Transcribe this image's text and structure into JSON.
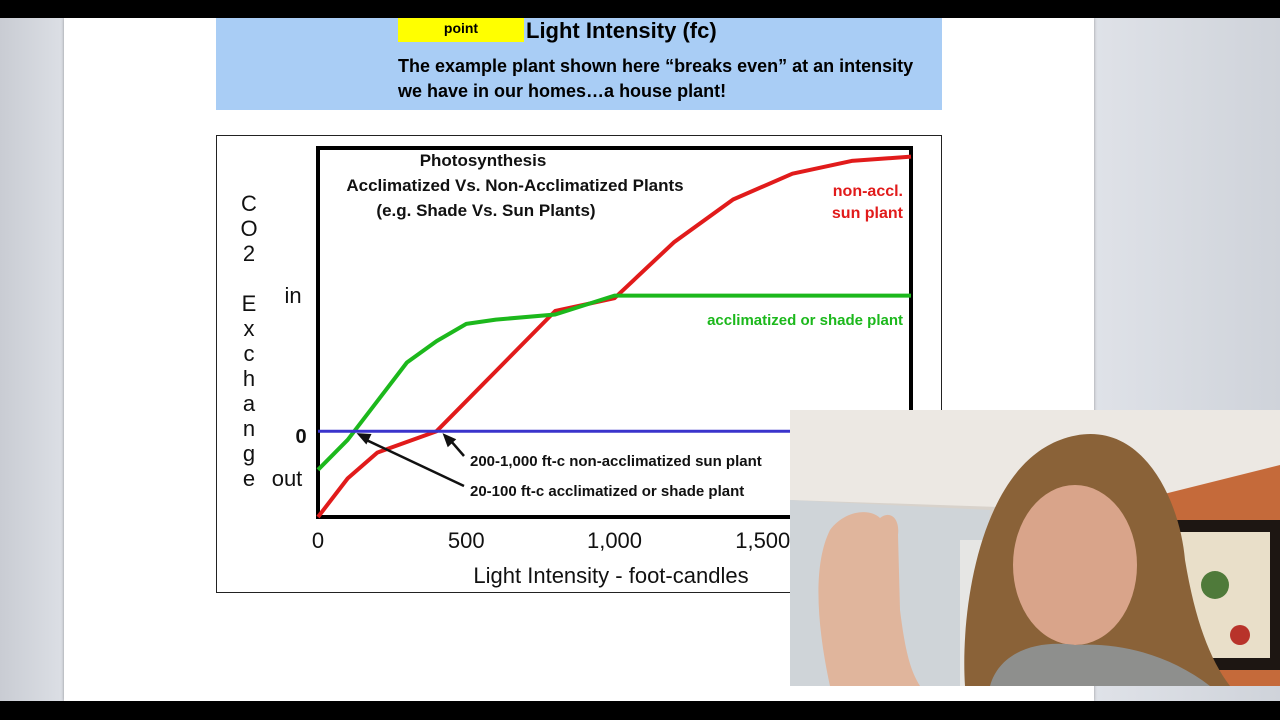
{
  "slide": {
    "header": {
      "point_label": "point",
      "title": "Light Intensity (fc)",
      "description": "The example plant shown here “breaks even” at an intensity we have in our homes…a house plant!"
    }
  },
  "chart_data": {
    "type": "line",
    "title_lines": [
      "Photosynthesis",
      "Acclimatized Vs. Non-Acclimatized Plants",
      "(e.g. Shade Vs. Sun Plants)"
    ],
    "xlabel": "Light Intensity - foot-candles",
    "ylabel_letters": [
      "C",
      "O",
      "2",
      "",
      "E",
      "x",
      "c",
      "h",
      "a",
      "n",
      "g",
      "e"
    ],
    "x_ticks": [
      "0",
      "500",
      "1,000",
      "1,500"
    ],
    "x_tick_values": [
      0,
      500,
      1000,
      1500
    ],
    "y_side_labels": {
      "in": "in",
      "zero": "0",
      "out": "out"
    },
    "xlim": [
      0,
      2000
    ],
    "ylim": [
      -1,
      3.3
    ],
    "series": [
      {
        "name": "non-accl. sun plant",
        "label_lines": [
          "non-accl.",
          "sun plant"
        ],
        "color": "#e11b1b",
        "points": [
          [
            0,
            -1
          ],
          [
            100,
            -0.55
          ],
          [
            200,
            -0.25
          ],
          [
            400,
            0
          ],
          [
            600,
            0.7
          ],
          [
            800,
            1.4
          ],
          [
            1000,
            1.55
          ],
          [
            1200,
            2.2
          ],
          [
            1400,
            2.7
          ],
          [
            1600,
            3.0
          ],
          [
            1800,
            3.15
          ],
          [
            2000,
            3.2
          ]
        ]
      },
      {
        "name": "acclimatized or shade plant",
        "label_lines": [
          "acclimatized or shade plant"
        ],
        "color": "#1cb81c",
        "points": [
          [
            0,
            -0.45
          ],
          [
            100,
            -0.1
          ],
          [
            200,
            0.35
          ],
          [
            300,
            0.8
          ],
          [
            400,
            1.05
          ],
          [
            500,
            1.25
          ],
          [
            600,
            1.3
          ],
          [
            800,
            1.36
          ],
          [
            1000,
            1.58
          ],
          [
            2000,
            1.58
          ]
        ]
      },
      {
        "name": "zero line",
        "color": "#3a34cc",
        "points": [
          [
            0,
            0
          ],
          [
            2000,
            0
          ]
        ]
      }
    ],
    "annotations": [
      {
        "text": "200-1,000 ft-c non-acclimatized sun plant",
        "points_to_x": 420
      },
      {
        "text": "20-100 ft-c acclimatized or shade plant",
        "points_to_x": 130
      }
    ],
    "colors": {
      "axis": "#000000",
      "sun": "#e11b1b",
      "shade": "#1cb81c",
      "zero": "#3a34cc"
    }
  },
  "webcam": {
    "colors": {
      "wall": "#c56a3a",
      "ceiling": "#e9e4de",
      "hair": "#8a6238",
      "skin": "#d9a48a",
      "sweater": "#8e8f8d"
    }
  }
}
